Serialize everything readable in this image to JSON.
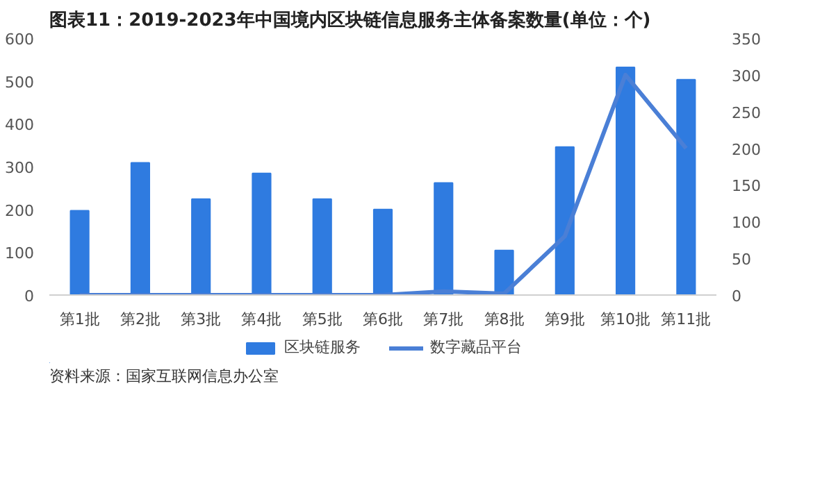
{
  "chart_data": {
    "type": "bar",
    "title": "图表11：2019-2023年中国境内区块链信息服务主体备案数量(单位：个)",
    "categories": [
      "第1批",
      "第2批",
      "第3批",
      "第4批",
      "第5批",
      "第6批",
      "第7批",
      "第8批",
      "第9批",
      "第10批",
      "第11批"
    ],
    "series": [
      {
        "name": "区块链服务",
        "color": "#2f7be0",
        "values": [
          197,
          309,
          224,
          284,
          224,
          200,
          262,
          104,
          346,
          532,
          503
        ]
      },
      {
        "name": "数字藏品平台",
        "type": "line",
        "axis": "y2",
        "color": "#4a7fd6",
        "values": [
          0,
          0,
          0,
          0,
          0,
          0,
          5,
          2,
          80,
          300,
          200
        ]
      }
    ],
    "ylim": [
      0,
      600
    ],
    "yticks": [
      0,
      100,
      200,
      300,
      400,
      500,
      600
    ],
    "y2lim": [
      0,
      350
    ],
    "y2ticks": [
      0,
      50,
      100,
      150,
      200,
      250,
      300,
      350
    ],
    "grid": false,
    "legend": "bottom",
    "line_style": "solid",
    "marker": "none",
    "annotations": [
      "资料来源：国家互联网信息办公室"
    ]
  }
}
